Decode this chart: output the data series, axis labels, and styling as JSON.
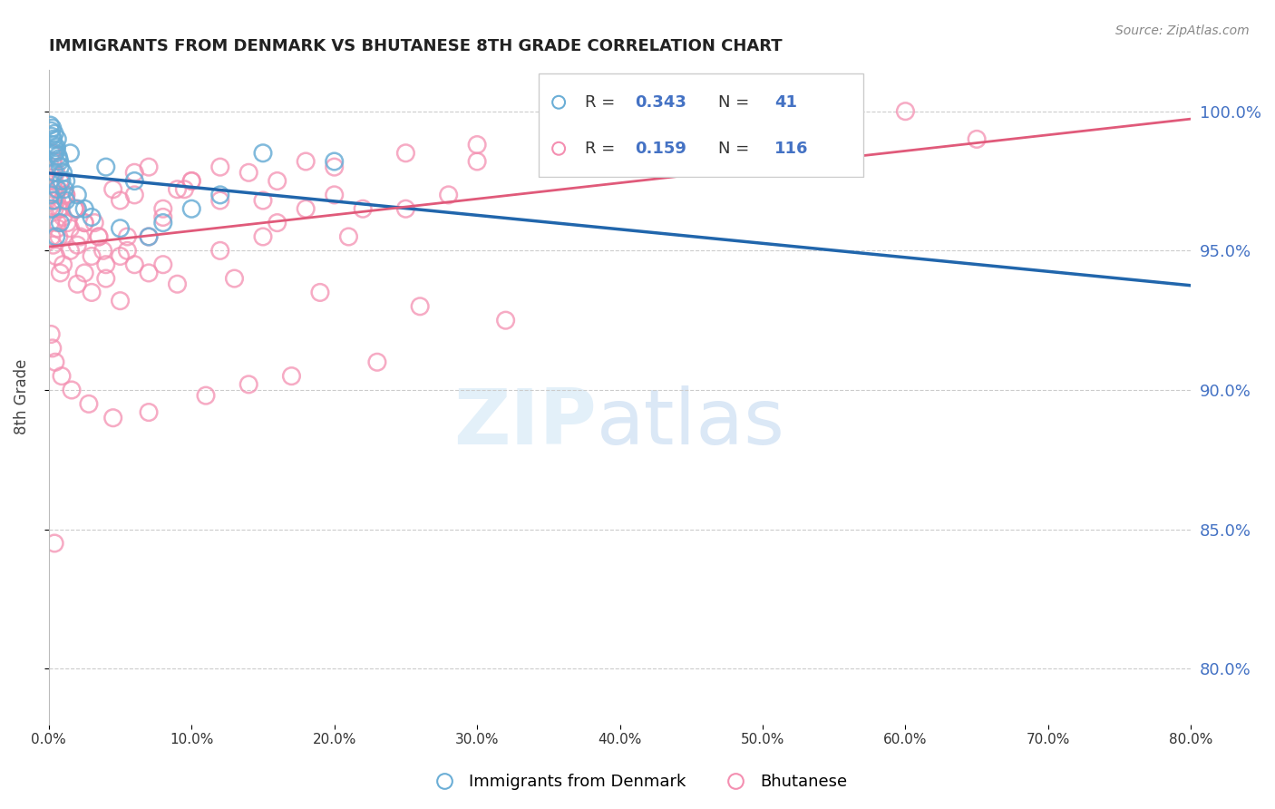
{
  "title": "IMMIGRANTS FROM DENMARK VS BHUTANESE 8TH GRADE CORRELATION CHART",
  "source": "Source: ZipAtlas.com",
  "ylabel": "8th Grade",
  "y_ticks": [
    80.0,
    85.0,
    90.0,
    95.0,
    100.0
  ],
  "x_range": [
    0.0,
    80.0
  ],
  "y_range": [
    78.0,
    101.5
  ],
  "legend_R1": "0.343",
  "legend_N1": "41",
  "legend_R2": "0.159",
  "legend_N2": "116",
  "color_blue": "#6baed6",
  "color_pink": "#f48fb1",
  "color_blue_line": "#2166ac",
  "color_pink_line": "#e05a7a",
  "color_label": "#4472c4",
  "blue_points_x": [
    0.1,
    0.15,
    0.2,
    0.25,
    0.3,
    0.35,
    0.4,
    0.45,
    0.5,
    0.55,
    0.6,
    0.65,
    0.7,
    0.75,
    0.8,
    0.9,
    1.0,
    1.1,
    1.2,
    1.5,
    2.0,
    2.5,
    4.0,
    6.0,
    8.0,
    12.0,
    15.0,
    0.1,
    0.2,
    0.3,
    0.5,
    0.8,
    1.2,
    2.0,
    3.0,
    5.0,
    7.0,
    10.0,
    20.0,
    0.4,
    0.6
  ],
  "blue_points_y": [
    99.5,
    99.3,
    99.1,
    99.4,
    99.0,
    98.8,
    99.2,
    98.5,
    98.6,
    98.7,
    99.0,
    98.4,
    98.3,
    98.2,
    98.0,
    97.5,
    97.8,
    97.2,
    96.8,
    98.5,
    97.0,
    96.5,
    98.0,
    97.5,
    96.0,
    97.0,
    98.5,
    97.0,
    96.5,
    96.8,
    95.5,
    96.0,
    97.5,
    96.5,
    96.2,
    95.8,
    95.5,
    96.5,
    98.2,
    97.8,
    97.2
  ],
  "pink_points_x": [
    0.1,
    0.15,
    0.2,
    0.25,
    0.3,
    0.35,
    0.4,
    0.5,
    0.6,
    0.7,
    0.8,
    0.9,
    1.0,
    1.2,
    1.5,
    1.8,
    2.0,
    2.5,
    3.0,
    3.5,
    4.0,
    4.5,
    5.0,
    5.5,
    6.0,
    7.0,
    8.0,
    9.0,
    10.0,
    12.0,
    14.0,
    16.0,
    18.0,
    20.0,
    25.0,
    30.0,
    35.0,
    40.0,
    50.0,
    60.0,
    0.1,
    0.2,
    0.3,
    0.4,
    0.5,
    0.6,
    0.7,
    0.8,
    1.0,
    1.5,
    2.0,
    2.5,
    3.0,
    4.0,
    5.0,
    6.0,
    7.0,
    8.0,
    10.0,
    12.0,
    15.0,
    18.0,
    20.0,
    25.0,
    0.2,
    0.3,
    0.5,
    0.8,
    1.2,
    1.8,
    2.5,
    3.5,
    5.0,
    7.0,
    9.0,
    12.0,
    16.0,
    22.0,
    28.0,
    38.0,
    0.15,
    0.25,
    0.45,
    0.9,
    1.6,
    2.8,
    4.5,
    7.0,
    11.0,
    14.0,
    17.0,
    23.0,
    0.35,
    0.65,
    1.1,
    1.9,
    3.2,
    5.5,
    8.0,
    13.0,
    19.0,
    26.0,
    32.0,
    0.55,
    0.85,
    1.3,
    2.2,
    3.8,
    6.0,
    9.5,
    15.0,
    21.0,
    30.0,
    55.0,
    65.0,
    0.4
  ],
  "pink_points_y": [
    97.5,
    98.0,
    98.5,
    98.2,
    97.8,
    97.2,
    96.5,
    97.0,
    96.0,
    95.5,
    97.5,
    96.8,
    96.2,
    97.0,
    95.8,
    96.5,
    95.2,
    96.0,
    94.8,
    95.5,
    94.5,
    97.2,
    96.8,
    95.0,
    97.8,
    98.0,
    96.5,
    97.2,
    97.5,
    98.0,
    97.8,
    97.5,
    98.2,
    98.0,
    98.5,
    98.8,
    99.0,
    99.2,
    99.5,
    100.0,
    96.0,
    95.5,
    95.2,
    96.8,
    94.8,
    95.8,
    96.5,
    94.2,
    94.5,
    95.0,
    93.8,
    94.2,
    93.5,
    94.0,
    93.2,
    97.0,
    95.5,
    96.2,
    97.5,
    96.8,
    95.5,
    96.5,
    97.0,
    96.5,
    98.5,
    98.2,
    97.8,
    97.5,
    97.0,
    96.5,
    96.0,
    95.5,
    94.8,
    94.2,
    93.8,
    95.0,
    96.0,
    96.5,
    97.0,
    98.5,
    92.0,
    91.5,
    91.0,
    90.5,
    90.0,
    89.5,
    89.0,
    89.2,
    89.8,
    90.2,
    90.5,
    91.0,
    97.5,
    97.2,
    97.0,
    96.5,
    96.0,
    95.5,
    94.5,
    94.0,
    93.5,
    93.0,
    92.5,
    96.8,
    96.5,
    96.0,
    95.5,
    95.0,
    94.5,
    97.2,
    96.8,
    95.5,
    98.2,
    99.0,
    99.0,
    84.5
  ]
}
